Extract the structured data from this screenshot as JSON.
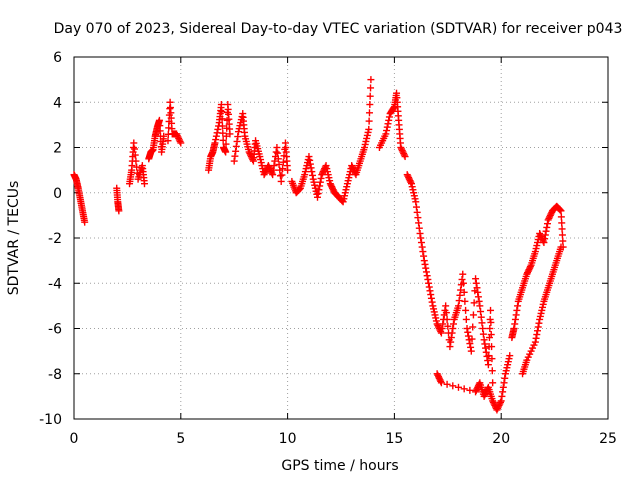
{
  "chart_data": {
    "type": "scatter",
    "title": "Day 070 of 2023, Sidereal Day-to-day VTEC variation (SDTVAR) for receiver p043",
    "xlabel": "GPS time / hours",
    "ylabel": "SDTVAR / TECUs",
    "xlim": [
      0,
      25
    ],
    "ylim": [
      -10,
      6
    ],
    "xticks": [
      0,
      5,
      10,
      15,
      20,
      25
    ],
    "yticks": [
      -10,
      -8,
      -6,
      -4,
      -2,
      0,
      2,
      4,
      6
    ],
    "xtick_labels": [
      "0",
      "5",
      "10",
      "15",
      "20",
      "25"
    ],
    "ytick_labels": [
      "-10",
      "-8",
      "-6",
      "-4",
      "-2",
      "0",
      "2",
      "4",
      "6"
    ],
    "grid": true,
    "marker": "plus",
    "series": [
      {
        "name": "SDTVAR",
        "color": "#ff0000",
        "segments": [
          [
            [
              0.0,
              0.8
            ],
            [
              0.1,
              0.6
            ],
            [
              0.2,
              0.2
            ],
            [
              0.3,
              -0.3
            ],
            [
              0.4,
              -0.8
            ],
            [
              0.5,
              -1.3
            ]
          ],
          [
            [
              2.0,
              0.2
            ],
            [
              2.05,
              -0.4
            ],
            [
              2.1,
              -0.8
            ]
          ],
          [
            [
              2.6,
              0.4
            ],
            [
              2.7,
              1.0
            ],
            [
              2.8,
              2.2
            ],
            [
              3.0,
              0.6
            ],
            [
              3.2,
              1.2
            ],
            [
              3.3,
              0.4
            ]
          ],
          [
            [
              3.5,
              1.5
            ],
            [
              3.6,
              1.8
            ],
            [
              3.7,
              1.9
            ],
            [
              3.8,
              2.5
            ],
            [
              3.9,
              2.9
            ],
            [
              4.0,
              3.2
            ],
            [
              4.1,
              1.8
            ],
            [
              4.2,
              2.5
            ]
          ],
          [
            [
              4.4,
              2.3
            ],
            [
              4.5,
              4.0
            ],
            [
              4.6,
              2.6
            ],
            [
              4.8,
              2.6
            ],
            [
              5.0,
              2.2
            ]
          ],
          [
            [
              6.3,
              1.0
            ],
            [
              6.4,
              1.6
            ],
            [
              6.5,
              1.8
            ],
            [
              6.6,
              2.2
            ],
            [
              6.8,
              3.1
            ],
            [
              6.9,
              3.9
            ],
            [
              7.0,
              2.0
            ],
            [
              7.1,
              1.8
            ],
            [
              7.2,
              3.9
            ],
            [
              7.3,
              2.6
            ]
          ],
          [
            [
              7.5,
              1.4
            ],
            [
              7.7,
              2.7
            ],
            [
              7.9,
              3.5
            ],
            [
              8.0,
              2.5
            ],
            [
              8.2,
              1.8
            ],
            [
              8.4,
              1.4
            ],
            [
              8.5,
              2.3
            ],
            [
              8.7,
              1.6
            ],
            [
              8.9,
              0.8
            ],
            [
              9.1,
              1.2
            ],
            [
              9.3,
              0.8
            ],
            [
              9.5,
              2.0
            ],
            [
              9.7,
              0.5
            ],
            [
              9.9,
              2.2
            ],
            [
              10.0,
              1.0
            ]
          ],
          [
            [
              10.2,
              0.5
            ],
            [
              10.4,
              0.0
            ],
            [
              10.6,
              0.2
            ],
            [
              10.8,
              0.8
            ],
            [
              11.0,
              1.6
            ],
            [
              11.2,
              0.6
            ],
            [
              11.4,
              -0.2
            ],
            [
              11.6,
              0.8
            ],
            [
              11.8,
              1.2
            ],
            [
              12.0,
              0.4
            ],
            [
              12.2,
              0.0
            ],
            [
              12.4,
              -0.2
            ],
            [
              12.6,
              -0.4
            ],
            [
              12.8,
              0.4
            ],
            [
              13.0,
              1.2
            ],
            [
              13.2,
              0.8
            ],
            [
              13.4,
              1.4
            ],
            [
              13.6,
              2.0
            ],
            [
              13.8,
              2.8
            ],
            [
              13.9,
              5.0
            ]
          ],
          [
            [
              14.3,
              2.0
            ],
            [
              14.6,
              2.6
            ],
            [
              14.8,
              3.5
            ],
            [
              15.0,
              3.8
            ],
            [
              15.1,
              4.4
            ],
            [
              15.2,
              3.2
            ],
            [
              15.3,
              2.0
            ],
            [
              15.5,
              1.6
            ]
          ],
          [
            [
              15.6,
              0.8
            ],
            [
              15.8,
              0.4
            ],
            [
              16.0,
              -0.4
            ],
            [
              16.2,
              -1.8
            ],
            [
              16.4,
              -3.0
            ],
            [
              16.6,
              -4.0
            ],
            [
              16.8,
              -5.0
            ],
            [
              17.0,
              -5.8
            ],
            [
              17.2,
              -6.2
            ],
            [
              17.4,
              -5.0
            ],
            [
              17.6,
              -6.8
            ],
            [
              17.8,
              -5.6
            ],
            [
              18.0,
              -5.0
            ],
            [
              18.2,
              -3.6
            ],
            [
              18.4,
              -6.0
            ],
            [
              18.6,
              -7.0
            ],
            [
              18.8,
              -3.8
            ],
            [
              19.0,
              -5.0
            ],
            [
              19.2,
              -6.5
            ],
            [
              19.4,
              -7.6
            ],
            [
              19.5,
              -5.2
            ],
            [
              19.6,
              -8.4
            ]
          ],
          [
            [
              17.0,
              -8.0
            ],
            [
              17.2,
              -8.4
            ],
            [
              18.8,
              -8.8
            ],
            [
              19.0,
              -8.4
            ],
            [
              19.2,
              -9.0
            ],
            [
              19.4,
              -8.6
            ],
            [
              19.6,
              -9.2
            ],
            [
              19.8,
              -9.6
            ],
            [
              20.0,
              -9.2
            ],
            [
              20.2,
              -8.0
            ],
            [
              20.4,
              -7.2
            ]
          ],
          [
            [
              20.5,
              -6.4
            ],
            [
              20.6,
              -6.0
            ],
            [
              20.8,
              -4.8
            ],
            [
              21.0,
              -4.2
            ],
            [
              21.2,
              -3.6
            ],
            [
              21.4,
              -3.2
            ],
            [
              21.6,
              -2.6
            ],
            [
              21.8,
              -1.8
            ],
            [
              22.0,
              -2.2
            ],
            [
              22.2,
              -1.2
            ],
            [
              22.4,
              -0.8
            ],
            [
              22.6,
              -0.6
            ],
            [
              22.8,
              -0.8
            ],
            [
              22.9,
              -2.4
            ]
          ],
          [
            [
              21.0,
              -8.0
            ],
            [
              21.2,
              -7.4
            ],
            [
              21.6,
              -6.6
            ],
            [
              21.8,
              -5.6
            ],
            [
              22.0,
              -4.8
            ],
            [
              22.2,
              -4.2
            ],
            [
              22.4,
              -3.6
            ],
            [
              22.6,
              -3.0
            ],
            [
              22.8,
              -2.4
            ]
          ]
        ]
      }
    ]
  }
}
